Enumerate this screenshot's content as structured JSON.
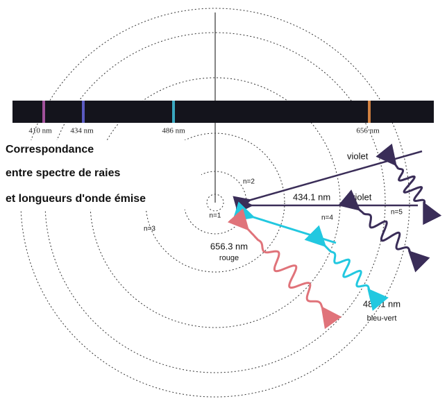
{
  "title": {
    "lines": [
      "Correspondance",
      "entre spectre de raies",
      "et longueurs d'onde émise"
    ]
  },
  "spectrum_labels": [
    "410 nm",
    "434 nm",
    "486 nm",
    "656 nm"
  ],
  "orbit_labels": [
    "n=1",
    "n=2",
    "n=3",
    "n=4",
    "n=5"
  ],
  "transitions": [
    {
      "color": "violet"
    },
    {
      "wavelength": "434.1 nm",
      "color": "violet"
    },
    {
      "wavelength": "656.3 nm",
      "color": "rouge"
    },
    {
      "wavelength": "486.1 nm",
      "color": "bleu-vert"
    }
  ]
}
